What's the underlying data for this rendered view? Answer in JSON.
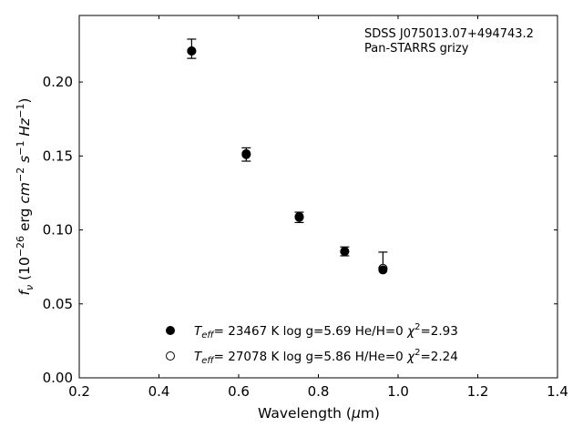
{
  "chart_data": {
    "type": "scatter",
    "xlabel_parts": [
      "Wavelength (",
      "μ",
      "m)"
    ],
    "ylabel_parts": [
      "f",
      "ν",
      " (10",
      "−26",
      " erg ",
      "cm",
      "−2",
      " ",
      "s",
      "−1",
      " ",
      "Hz",
      "−1",
      ")"
    ],
    "xlim": [
      0.2,
      1.4
    ],
    "ylim": [
      0.0,
      0.245
    ],
    "xticks": [
      0.2,
      0.4,
      0.6,
      0.8,
      1.0,
      1.2,
      1.4
    ],
    "xtick_labels": [
      "0.2",
      "0.4",
      "0.6",
      "0.8",
      "1.0",
      "1.2",
      "1.4"
    ],
    "yticks": [
      0.0,
      0.05,
      0.1,
      0.15,
      0.2
    ],
    "ytick_labels": [
      "0.00",
      "0.05",
      "0.10",
      "0.15",
      "0.20"
    ],
    "annotations": [
      "SDSS J075013.07+494743.2",
      "Pan-STARRS grizy"
    ],
    "observed": [
      {
        "x": 0.482,
        "y": 0.2225,
        "yerr_low": 0.0065,
        "yerr_high": 0.0065
      },
      {
        "x": 0.619,
        "y": 0.151,
        "yerr_low": 0.0045,
        "yerr_high": 0.0045
      },
      {
        "x": 0.752,
        "y": 0.1085,
        "yerr_low": 0.0035,
        "yerr_high": 0.0035
      },
      {
        "x": 0.866,
        "y": 0.0855,
        "yerr_low": 0.003,
        "yerr_high": 0.003
      },
      {
        "x": 0.962,
        "y": 0.0755,
        "yerr_low": 0.0015,
        "yerr_high": 0.0095
      }
    ],
    "series": [
      {
        "name": "Teff= 23467 K  log g=5.69  He/H=0  χ2=2.93",
        "name_parts": [
          "T",
          "eff",
          "= 23467 K  log g=5.69  He/H=0  ",
          "χ",
          "2",
          "=2.93"
        ],
        "marker": "filled-circle",
        "color": "#000000",
        "x": [
          0.482,
          0.619,
          0.752,
          0.866,
          0.962
        ],
        "y": [
          0.221,
          0.151,
          0.109,
          0.0855,
          0.073
        ]
      },
      {
        "name": "Teff= 27078 K  log g=5.86  H/He=0  χ2=2.24",
        "name_parts": [
          "T",
          "eff",
          "= 27078 K  log g=5.86  H/He=0  ",
          "χ",
          "2",
          "=2.24"
        ],
        "marker": "open-circle",
        "color": "#000000",
        "x": [
          0.482,
          0.619,
          0.752,
          0.866,
          0.962
        ],
        "y": [
          0.221,
          0.1515,
          0.1085,
          0.0855,
          0.074
        ]
      }
    ],
    "legend_position": "lower-center",
    "grid": false
  }
}
